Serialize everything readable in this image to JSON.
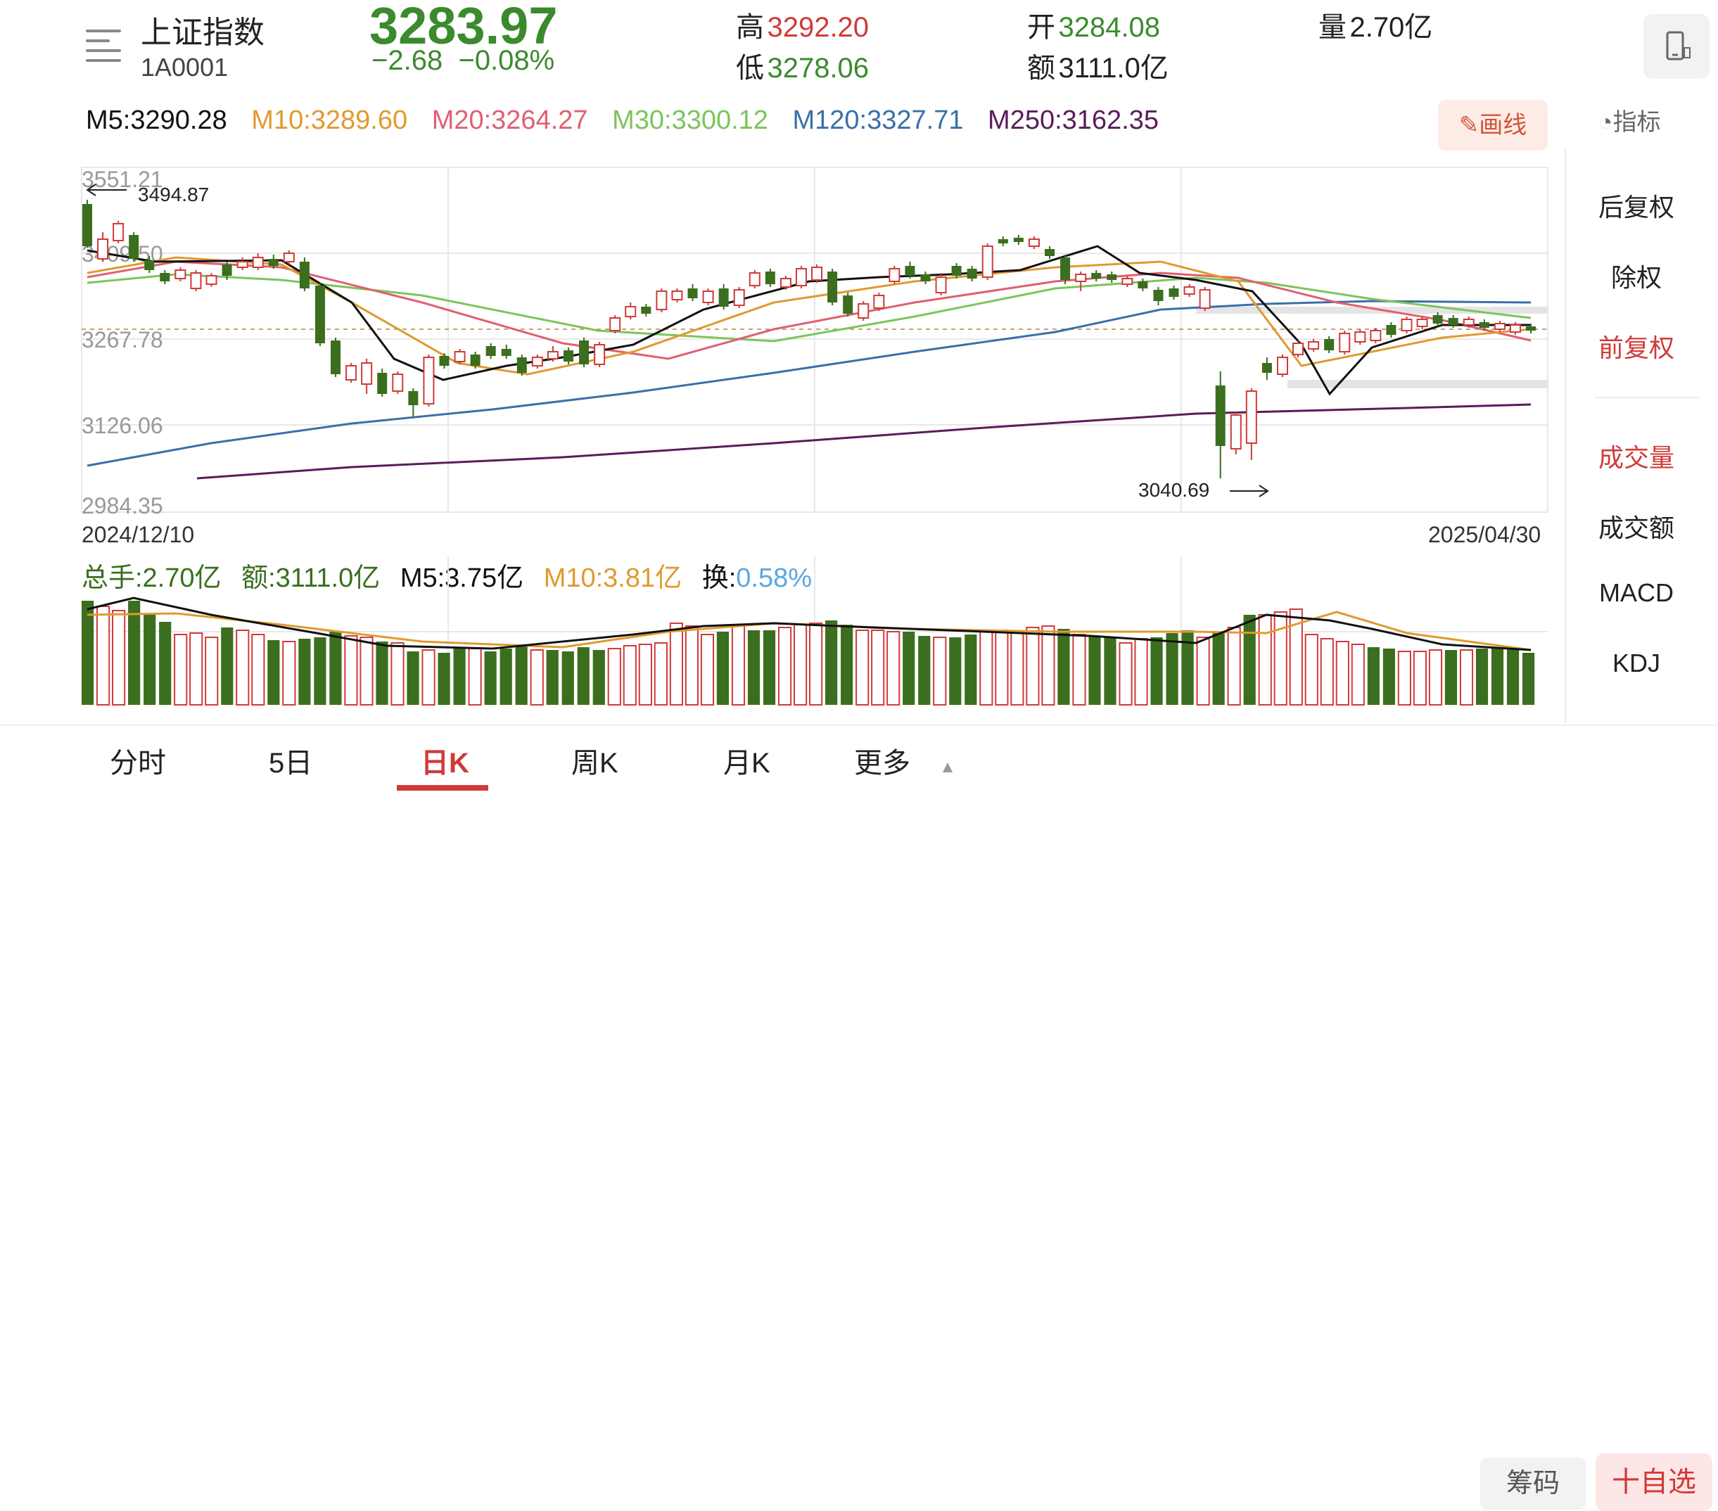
{
  "header": {
    "name": "上证指数",
    "code": "1A0001",
    "price": "3283.97",
    "change": "−2.68",
    "change_pct": "−0.08%",
    "high_label": "高",
    "high": "3292.20",
    "low_label": "低",
    "low": "3278.06",
    "open_label": "开",
    "open": "3284.08",
    "amount_label": "额",
    "amount": "3111.0亿",
    "volume_label": "量",
    "volume": "2.70亿"
  },
  "ma": {
    "m5": "M5:3290.28",
    "m10": "M10:3289.60",
    "m20": "M20:3264.27",
    "m30": "M30:3300.12",
    "m120": "M120:3327.71",
    "m250": "M250:3162.35"
  },
  "buttons": {
    "draw": "画线",
    "indicator": "指标",
    "chips": "筹码",
    "favorite": "十自选"
  },
  "side_menu": {
    "items": [
      "后复权",
      "除权",
      "前复权",
      "成交量",
      "成交额",
      "MACD",
      "KDJ"
    ]
  },
  "tabs": [
    "分时",
    "5日",
    "日K",
    "周K",
    "月K",
    "更多"
  ],
  "dates": {
    "start": "2024/12/10",
    "end": "2025/04/30"
  },
  "volume_info": {
    "total": "总手:2.70亿",
    "amount": "额:3111.0亿",
    "m5": "M5:3.75亿",
    "m10": "M10:3.81亿",
    "turnover_label": "换:",
    "turnover": "0.58%"
  },
  "chart_data": {
    "type": "candlestick",
    "y_ticks": [
      "3551.21",
      "3409.50",
      "3267.78",
      "3126.06",
      "2984.35"
    ],
    "ylim": [
      2984.35,
      3551.21
    ],
    "max_marker": "3494.87",
    "min_marker": "3040.69",
    "colors": {
      "up": "#d03a3a",
      "down": "#3b6e1e",
      "ma5": "#111111",
      "ma10": "#e09a2f",
      "ma20": "#e06070",
      "ma30": "#7cc45a",
      "ma120": "#3a70a8",
      "ma250": "#5a1c5a"
    }
  }
}
